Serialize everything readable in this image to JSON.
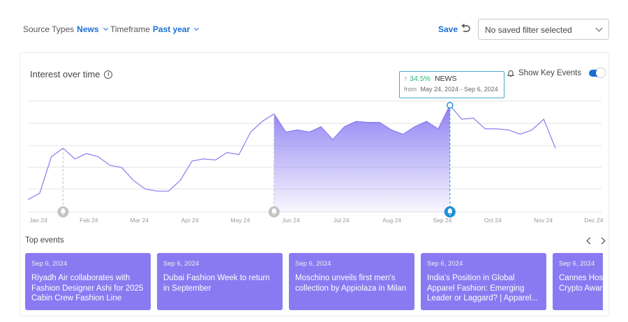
{
  "filters": {
    "source_label": "Source Types",
    "source_value": "News",
    "timeframe_label": "Timeframe",
    "timeframe_value": "Past year"
  },
  "toolbar": {
    "save_label": "Save",
    "saved_filter_placeholder": "No saved filter selected"
  },
  "card": {
    "title": "Interest over time",
    "key_events_label": "Show Key Events",
    "key_events_on": true
  },
  "tooltip": {
    "change": "34.5%",
    "source": "NEWS",
    "from_label": "from",
    "range": "May 24, 2024 - Sep 6, 2024"
  },
  "chart_data": {
    "type": "area",
    "x_labels": [
      "Jan 24",
      "Feb 24",
      "Mar 24",
      "Apr 24",
      "May 24",
      "Jun 24",
      "Jul 24",
      "Aug 24",
      "Sep 24",
      "Oct 24",
      "Nov 24",
      "Dec 24"
    ],
    "y": [
      12,
      18,
      52,
      60,
      50,
      55,
      52,
      44,
      42,
      30,
      22,
      20,
      20,
      30,
      48,
      50,
      49,
      56,
      54,
      75,
      85,
      92,
      75,
      77,
      75,
      80,
      68,
      80,
      85,
      84,
      84,
      77,
      73,
      80,
      85,
      78,
      100,
      87,
      88,
      78,
      78,
      77,
      73,
      77,
      87,
      60
    ],
    "highlight_range": [
      21,
      36
    ],
    "peak_index": 36,
    "event_markers": [
      3,
      21,
      36
    ],
    "accent_color": "#8a7af2",
    "grid": true
  },
  "top_events": {
    "label": "Top events",
    "items": [
      {
        "date": "Sep 6, 2024",
        "title": "Riyadh Air collaborates with Fashion Designer Ashi for 2025 Cabin Crew Fashion Line"
      },
      {
        "date": "Sep 6, 2024",
        "title": "Dubai Fashion Week to return in September"
      },
      {
        "date": "Sep 6, 2024",
        "title": "Moschino unveils first men's collection by Appiolaza in Milan"
      },
      {
        "date": "Sep 6, 2024",
        "title": "India's Position in Global Apparel Fashion: Emerging Leader or Laggard? | Apparel..."
      },
      {
        "date": "Sep 6, 2024",
        "title": "Cannes Host Success of th Crypto Awar"
      }
    ]
  }
}
